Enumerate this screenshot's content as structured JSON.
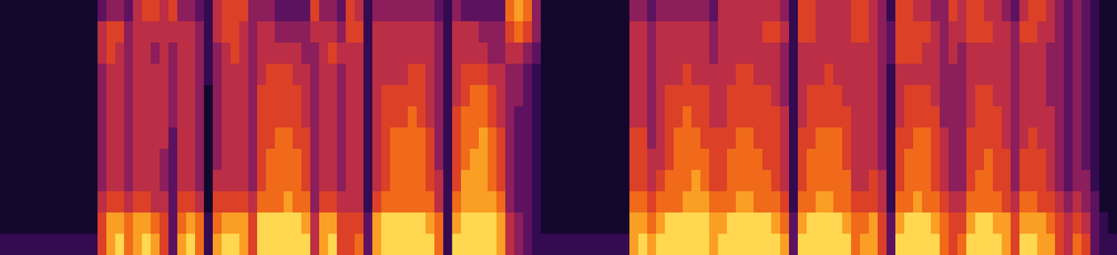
{
  "chart_data": {
    "type": "heatmap",
    "tick_labels": false,
    "zlim": [
      0,
      9
    ],
    "cells": [
      [
        1,
        1,
        1,
        1,
        1,
        1,
        1,
        1,
        1,
        1,
        1,
        2
      ],
      [
        1,
        1,
        1,
        1,
        1,
        1,
        1,
        1,
        1,
        1,
        1,
        2
      ],
      [
        1,
        1,
        1,
        1,
        1,
        1,
        1,
        1,
        1,
        1,
        1,
        2
      ],
      [
        1,
        1,
        1,
        1,
        1,
        1,
        1,
        1,
        1,
        1,
        1,
        2
      ],
      [
        1,
        1,
        1,
        1,
        1,
        1,
        1,
        1,
        1,
        1,
        1,
        2
      ],
      [
        1,
        1,
        1,
        1,
        1,
        1,
        1,
        1,
        1,
        1,
        1,
        2
      ],
      [
        1,
        1,
        1,
        1,
        1,
        1,
        1,
        1,
        1,
        1,
        1,
        2
      ],
      [
        1,
        1,
        1,
        1,
        1,
        1,
        1,
        1,
        1,
        1,
        1,
        2
      ],
      [
        1,
        1,
        1,
        1,
        1,
        1,
        1,
        1,
        1,
        1,
        1,
        2
      ],
      [
        1,
        1,
        1,
        1,
        1,
        1,
        1,
        1,
        1,
        1,
        1,
        2
      ],
      [
        1,
        1,
        1,
        1,
        1,
        1,
        1,
        1,
        1,
        1,
        1,
        2
      ],
      [
        3,
        5,
        5,
        4,
        4,
        4,
        4,
        4,
        4,
        5,
        6,
        6
      ],
      [
        4,
        6,
        6,
        5,
        5,
        5,
        5,
        5,
        5,
        6,
        8,
        8
      ],
      [
        4,
        6,
        5,
        5,
        5,
        5,
        5,
        5,
        5,
        6,
        8,
        9
      ],
      [
        3,
        4,
        4,
        4,
        4,
        4,
        4,
        4,
        4,
        5,
        7,
        7
      ],
      [
        5,
        5,
        5,
        5,
        5,
        5,
        5,
        5,
        5,
        6,
        8,
        8
      ],
      [
        6,
        5,
        5,
        5,
        5,
        5,
        5,
        5,
        5,
        6,
        8,
        9
      ],
      [
        6,
        5,
        4,
        5,
        5,
        5,
        5,
        5,
        5,
        5,
        7,
        8
      ],
      [
        5,
        5,
        5,
        5,
        5,
        5,
        5,
        4,
        4,
        5,
        6,
        6
      ],
      [
        6,
        5,
        4,
        4,
        4,
        4,
        3,
        3,
        3,
        3,
        3,
        3
      ],
      [
        4,
        5,
        5,
        5,
        5,
        5,
        5,
        5,
        5,
        6,
        7,
        8
      ],
      [
        4,
        5,
        5,
        5,
        5,
        5,
        5,
        5,
        5,
        6,
        8,
        9
      ],
      [
        3,
        4,
        4,
        4,
        4,
        4,
        4,
        4,
        4,
        5,
        7,
        7
      ],
      [
        2,
        2,
        2,
        2,
        1,
        1,
        1,
        1,
        1,
        1,
        2,
        2
      ],
      [
        5,
        5,
        4,
        4,
        4,
        4,
        4,
        4,
        5,
        6,
        7,
        8
      ],
      [
        6,
        6,
        5,
        5,
        5,
        5,
        5,
        5,
        5,
        6,
        8,
        9
      ],
      [
        6,
        6,
        6,
        5,
        5,
        5,
        5,
        5,
        5,
        6,
        8,
        9
      ],
      [
        6,
        5,
        5,
        5,
        5,
        5,
        5,
        5,
        5,
        6,
        8,
        8
      ],
      [
        4,
        4,
        4,
        4,
        4,
        4,
        4,
        4,
        4,
        5,
        6,
        6
      ],
      [
        4,
        5,
        5,
        5,
        6,
        6,
        6,
        6,
        6,
        7,
        9,
        9
      ],
      [
        4,
        5,
        5,
        6,
        6,
        6,
        6,
        7,
        7,
        7,
        9,
        9
      ],
      [
        3,
        4,
        5,
        6,
        6,
        6,
        7,
        7,
        7,
        7,
        9,
        9
      ],
      [
        3,
        4,
        5,
        6,
        6,
        6,
        7,
        7,
        7,
        8,
        9,
        9
      ],
      [
        3,
        4,
        5,
        5,
        6,
        6,
        6,
        7,
        7,
        7,
        9,
        9
      ],
      [
        3,
        4,
        4,
        5,
        5,
        5,
        6,
        6,
        6,
        7,
        8,
        9
      ],
      [
        6,
        5,
        4,
        4,
        4,
        4,
        4,
        4,
        4,
        4,
        5,
        5
      ],
      [
        4,
        5,
        5,
        5,
        5,
        5,
        5,
        5,
        5,
        6,
        8,
        8
      ],
      [
        4,
        5,
        6,
        5,
        5,
        5,
        5,
        5,
        5,
        6,
        8,
        9
      ],
      [
        3,
        4,
        5,
        4,
        4,
        4,
        4,
        4,
        4,
        5,
        6,
        6
      ],
      [
        6,
        6,
        5,
        5,
        5,
        5,
        5,
        5,
        5,
        5,
        6,
        6
      ],
      [
        5,
        6,
        5,
        5,
        5,
        5,
        5,
        5,
        5,
        5,
        6,
        7
      ],
      [
        2,
        2,
        2,
        2,
        2,
        2,
        2,
        2,
        2,
        2,
        3,
        3
      ],
      [
        4,
        5,
        5,
        5,
        5,
        5,
        5,
        5,
        5,
        6,
        8,
        8
      ],
      [
        4,
        5,
        5,
        5,
        6,
        6,
        6,
        6,
        6,
        7,
        9,
        9
      ],
      [
        4,
        5,
        5,
        5,
        6,
        6,
        7,
        7,
        7,
        7,
        9,
        9
      ],
      [
        4,
        5,
        5,
        5,
        6,
        6,
        7,
        7,
        7,
        7,
        9,
        9
      ],
      [
        4,
        5,
        5,
        6,
        6,
        7,
        7,
        7,
        7,
        7,
        9,
        9
      ],
      [
        4,
        5,
        5,
        6,
        6,
        6,
        7,
        7,
        7,
        7,
        9,
        9
      ],
      [
        4,
        5,
        5,
        5,
        5,
        5,
        6,
        6,
        6,
        7,
        8,
        9
      ],
      [
        3,
        4,
        4,
        4,
        4,
        4,
        4,
        4,
        5,
        5,
        7,
        7
      ],
      [
        2,
        2,
        2,
        2,
        2,
        2,
        2,
        2,
        2,
        2,
        2,
        2
      ],
      [
        4,
        5,
        5,
        5,
        5,
        6,
        6,
        6,
        6,
        7,
        8,
        9
      ],
      [
        3,
        5,
        5,
        6,
        6,
        7,
        7,
        7,
        8,
        8,
        9,
        9
      ],
      [
        3,
        5,
        5,
        6,
        7,
        7,
        7,
        8,
        8,
        8,
        9,
        9
      ],
      [
        3,
        4,
        5,
        6,
        7,
        7,
        8,
        8,
        8,
        8,
        9,
        9
      ],
      [
        3,
        4,
        4,
        5,
        6,
        6,
        7,
        7,
        7,
        8,
        9,
        9
      ],
      [
        3,
        4,
        4,
        5,
        5,
        5,
        6,
        6,
        6,
        7,
        8,
        8
      ],
      [
        7,
        6,
        5,
        4,
        4,
        4,
        4,
        4,
        4,
        4,
        5,
        5
      ],
      [
        8,
        7,
        5,
        4,
        4,
        3,
        3,
        3,
        3,
        3,
        4,
        4
      ],
      [
        7,
        6,
        4,
        3,
        3,
        3,
        3,
        3,
        3,
        3,
        3,
        3
      ],
      [
        4,
        4,
        3,
        2,
        2,
        2,
        2,
        2,
        2,
        2,
        2,
        2
      ],
      [
        1,
        1,
        1,
        1,
        1,
        1,
        1,
        1,
        1,
        1,
        1,
        2
      ],
      [
        1,
        1,
        1,
        1,
        1,
        1,
        1,
        1,
        1,
        1,
        1,
        2
      ],
      [
        1,
        1,
        1,
        1,
        1,
        1,
        1,
        1,
        1,
        1,
        1,
        2
      ],
      [
        1,
        1,
        1,
        1,
        1,
        1,
        1,
        1,
        1,
        1,
        1,
        2
      ],
      [
        1,
        1,
        1,
        1,
        1,
        1,
        1,
        1,
        1,
        1,
        1,
        2
      ],
      [
        1,
        1,
        1,
        1,
        1,
        1,
        1,
        1,
        1,
        1,
        1,
        2
      ],
      [
        1,
        1,
        1,
        1,
        1,
        1,
        1,
        1,
        1,
        1,
        1,
        2
      ],
      [
        1,
        1,
        1,
        1,
        1,
        1,
        1,
        1,
        1,
        1,
        1,
        2
      ],
      [
        1,
        1,
        1,
        1,
        1,
        1,
        1,
        1,
        1,
        1,
        1,
        2
      ],
      [
        1,
        1,
        1,
        1,
        1,
        1,
        1,
        1,
        1,
        1,
        1,
        2
      ],
      [
        4,
        5,
        5,
        5,
        5,
        5,
        6,
        6,
        6,
        7,
        8,
        8
      ],
      [
        4,
        5,
        5,
        5,
        5,
        5,
        6,
        6,
        6,
        7,
        8,
        9
      ],
      [
        3,
        4,
        4,
        4,
        4,
        4,
        4,
        5,
        5,
        6,
        7,
        8
      ],
      [
        4,
        5,
        5,
        5,
        5,
        5,
        5,
        5,
        6,
        7,
        8,
        9
      ],
      [
        4,
        5,
        5,
        5,
        6,
        6,
        6,
        6,
        7,
        7,
        9,
        9
      ],
      [
        4,
        5,
        5,
        5,
        6,
        6,
        7,
        7,
        7,
        7,
        9,
        9
      ],
      [
        4,
        5,
        5,
        6,
        6,
        7,
        7,
        7,
        7,
        8,
        9,
        9
      ],
      [
        4,
        5,
        5,
        5,
        6,
        6,
        7,
        7,
        8,
        8,
        9,
        9
      ],
      [
        4,
        5,
        5,
        5,
        6,
        6,
        6,
        7,
        7,
        8,
        9,
        9
      ],
      [
        3,
        4,
        4,
        5,
        5,
        5,
        6,
        6,
        6,
        7,
        8,
        8
      ],
      [
        5,
        5,
        5,
        5,
        5,
        5,
        6,
        6,
        6,
        7,
        8,
        9
      ],
      [
        5,
        5,
        5,
        5,
        6,
        6,
        6,
        7,
        7,
        7,
        9,
        9
      ],
      [
        5,
        5,
        5,
        6,
        6,
        6,
        7,
        7,
        7,
        8,
        9,
        9
      ],
      [
        5,
        5,
        5,
        6,
        6,
        6,
        7,
        7,
        7,
        8,
        9,
        9
      ],
      [
        5,
        5,
        5,
        5,
        6,
        6,
        6,
        7,
        7,
        7,
        9,
        9
      ],
      [
        5,
        6,
        5,
        5,
        6,
        6,
        6,
        6,
        7,
        7,
        9,
        9
      ],
      [
        5,
        6,
        5,
        5,
        5,
        6,
        6,
        6,
        6,
        7,
        8,
        9
      ],
      [
        4,
        5,
        4,
        4,
        4,
        5,
        5,
        5,
        5,
        6,
        7,
        8
      ],
      [
        2,
        2,
        2,
        2,
        2,
        2,
        2,
        2,
        2,
        2,
        3,
        3
      ],
      [
        6,
        6,
        5,
        5,
        5,
        5,
        6,
        6,
        6,
        7,
        8,
        9
      ],
      [
        6,
        6,
        5,
        5,
        6,
        6,
        6,
        7,
        7,
        7,
        9,
        9
      ],
      [
        5,
        5,
        5,
        5,
        6,
        6,
        7,
        7,
        7,
        8,
        9,
        9
      ],
      [
        5,
        5,
        5,
        6,
        6,
        6,
        7,
        7,
        7,
        8,
        9,
        9
      ],
      [
        5,
        5,
        5,
        5,
        6,
        6,
        7,
        7,
        7,
        7,
        9,
        9
      ],
      [
        5,
        5,
        5,
        5,
        5,
        6,
        6,
        6,
        7,
        7,
        8,
        9
      ],
      [
        6,
        6,
        5,
        5,
        5,
        5,
        5,
        5,
        5,
        6,
        7,
        7
      ],
      [
        6,
        6,
        5,
        5,
        5,
        5,
        5,
        5,
        5,
        6,
        7,
        8
      ],
      [
        5,
        5,
        5,
        5,
        5,
        5,
        5,
        5,
        6,
        6,
        8,
        8
      ],
      [
        4,
        4,
        4,
        4,
        4,
        4,
        4,
        4,
        5,
        5,
        6,
        6
      ],
      [
        2,
        3,
        3,
        2,
        2,
        2,
        2,
        2,
        2,
        2,
        3,
        3
      ],
      [
        6,
        6,
        6,
        5,
        5,
        5,
        6,
        6,
        6,
        7,
        8,
        9
      ],
      [
        6,
        6,
        6,
        5,
        6,
        6,
        6,
        7,
        7,
        7,
        9,
        9
      ],
      [
        5,
        6,
        6,
        5,
        6,
        6,
        7,
        7,
        7,
        8,
        9,
        9
      ],
      [
        5,
        6,
        5,
        5,
        6,
        6,
        7,
        7,
        7,
        7,
        9,
        9
      ],
      [
        4,
        5,
        5,
        5,
        5,
        6,
        6,
        6,
        6,
        7,
        8,
        9
      ],
      [
        4,
        4,
        4,
        4,
        4,
        4,
        5,
        5,
        5,
        6,
        7,
        7
      ],
      [
        6,
        5,
        5,
        4,
        4,
        4,
        4,
        4,
        4,
        5,
        6,
        6
      ],
      [
        5,
        5,
        4,
        4,
        4,
        4,
        4,
        4,
        4,
        5,
        6,
        7
      ],
      [
        6,
        6,
        5,
        5,
        5,
        5,
        6,
        6,
        6,
        7,
        8,
        9
      ],
      [
        6,
        6,
        5,
        5,
        6,
        6,
        6,
        6,
        7,
        7,
        9,
        9
      ],
      [
        5,
        6,
        5,
        5,
        6,
        6,
        6,
        7,
        7,
        7,
        9,
        9
      ],
      [
        5,
        5,
        5,
        5,
        5,
        6,
        6,
        6,
        6,
        7,
        8,
        9
      ],
      [
        4,
        5,
        5,
        5,
        5,
        5,
        5,
        6,
        6,
        6,
        8,
        8
      ],
      [
        3,
        4,
        4,
        4,
        4,
        4,
        4,
        4,
        4,
        5,
        6,
        6
      ],
      [
        5,
        6,
        5,
        5,
        5,
        5,
        5,
        6,
        6,
        7,
        8,
        9
      ],
      [
        6,
        6,
        5,
        5,
        5,
        5,
        6,
        6,
        6,
        7,
        8,
        9
      ],
      [
        6,
        5,
        5,
        5,
        5,
        5,
        5,
        6,
        6,
        6,
        8,
        8
      ],
      [
        5,
        5,
        4,
        4,
        4,
        5,
        5,
        5,
        5,
        6,
        7,
        8
      ],
      [
        4,
        4,
        4,
        4,
        4,
        4,
        4,
        4,
        4,
        5,
        6,
        6
      ],
      [
        3,
        3,
        3,
        3,
        3,
        3,
        3,
        3,
        3,
        4,
        5,
        5
      ],
      [
        4,
        4,
        4,
        4,
        4,
        4,
        4,
        4,
        4,
        5,
        6,
        7
      ],
      [
        3,
        3,
        3,
        3,
        3,
        3,
        3,
        3,
        4,
        4,
        5,
        6
      ],
      [
        2,
        2,
        2,
        2,
        2,
        2,
        2,
        2,
        2,
        3,
        3,
        3
      ],
      [
        1,
        1,
        1,
        1,
        1,
        1,
        1,
        1,
        1,
        1,
        2,
        2
      ],
      [
        1,
        1,
        1,
        1,
        1,
        1,
        1,
        1,
        1,
        1,
        1,
        2
      ]
    ]
  }
}
